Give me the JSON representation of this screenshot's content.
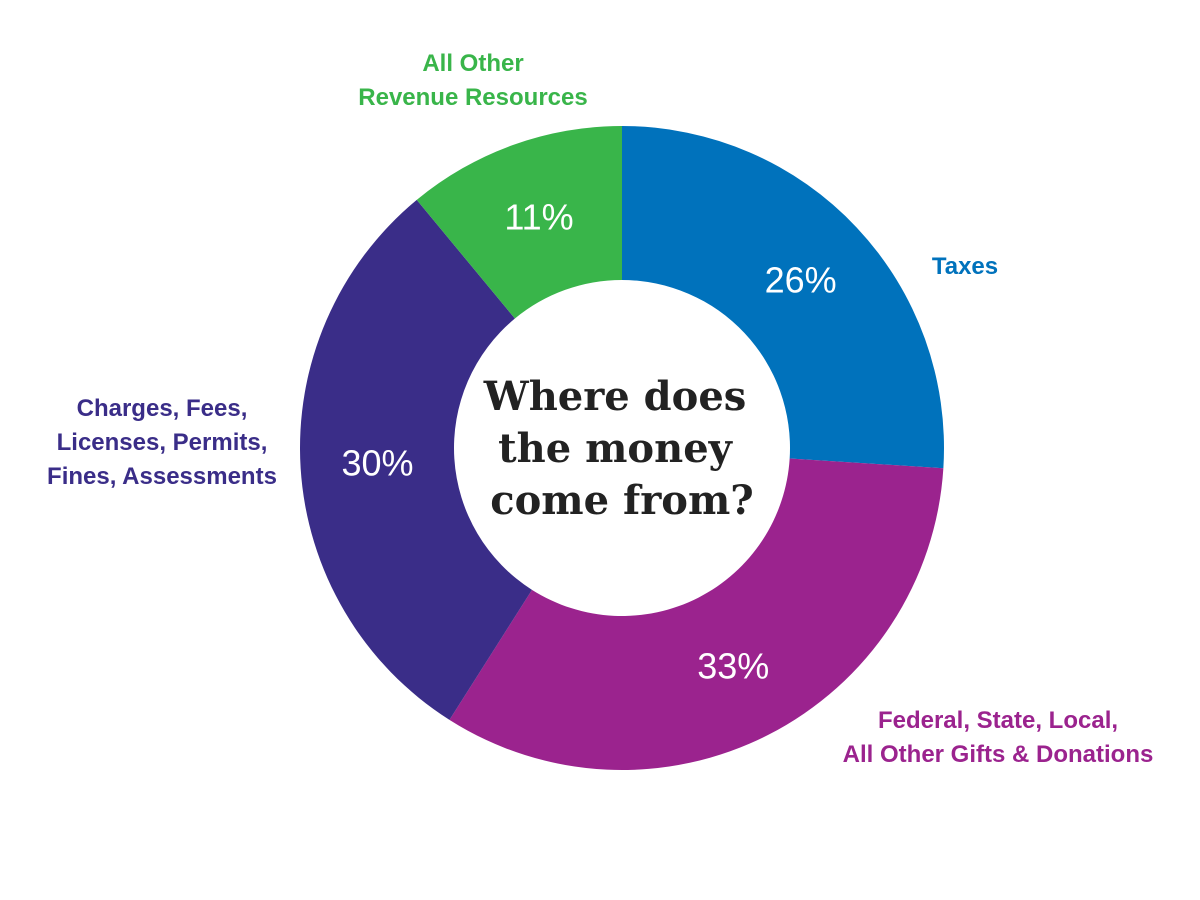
{
  "chart_data": {
    "type": "pie",
    "style": "donut",
    "title_lines": [
      "Where does",
      "the money",
      "come from?"
    ],
    "unit": "%",
    "slices": [
      {
        "label_lines": [
          "Taxes"
        ],
        "value": 26,
        "display": "26%",
        "color": "#0072bc"
      },
      {
        "label_lines": [
          "Federal, State, Local,",
          "All Other Gifts & Donations"
        ],
        "value": 33,
        "display": "33%",
        "color": "#9b238e"
      },
      {
        "label_lines": [
          "Charges, Fees,",
          "Licenses, Permits,",
          "Fines, Assessments"
        ],
        "value": 30,
        "display": "30%",
        "color": "#3a2d88"
      },
      {
        "label_lines": [
          "All Other",
          "Revenue Resources"
        ],
        "value": 11,
        "display": "11%",
        "color": "#39b54a"
      }
    ]
  }
}
